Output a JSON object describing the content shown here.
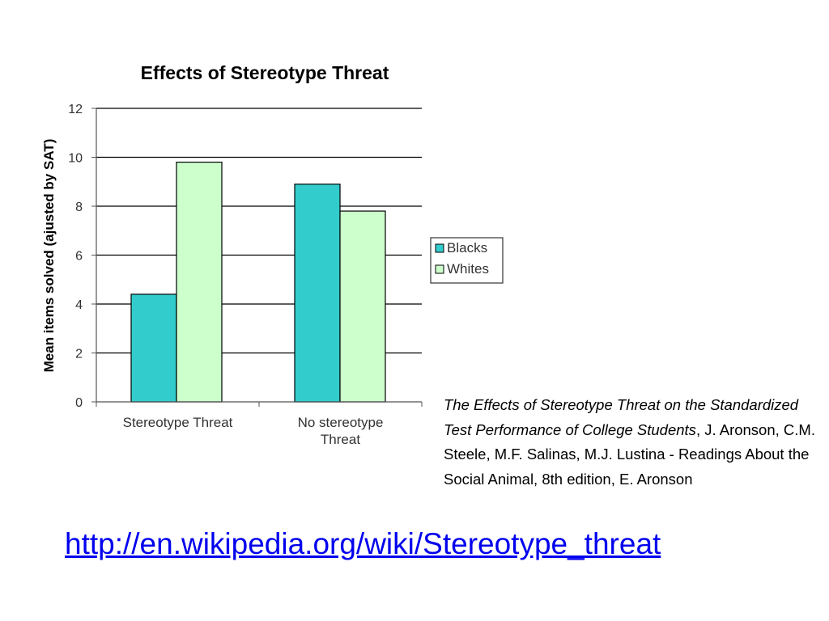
{
  "chart_data": {
    "type": "bar",
    "title": "Effects of Stereotype Threat",
    "xlabel": "",
    "ylabel": "Mean items solved (ajusted by SAT)",
    "ylim": [
      0,
      12
    ],
    "yticks": [
      "0",
      "2",
      "4",
      "6",
      "8",
      "10",
      "12"
    ],
    "categories": [
      "Stereotype Threat",
      "No stereotype Threat"
    ],
    "series": [
      {
        "name": "Blacks",
        "values": [
          4.4,
          8.9
        ],
        "color": "#33cccc"
      },
      {
        "name": "Whites",
        "values": [
          9.8,
          7.8
        ],
        "color": "#ccffcc"
      }
    ],
    "grid": true,
    "legend_position": "right"
  },
  "citation": {
    "title_italic": "The Effects of Stereotype Threat on the Standardized Test Performance of College Students",
    "rest": ", J. Aronson, C.M. Steele, M.F. Salinas, M.J. Lustina - Readings About the Social Animal, 8th edition, E. Aronson"
  },
  "link": {
    "text": "http://en.wikipedia.org/wiki/Stereotype_threat"
  },
  "colors": {
    "link": "#0000ee",
    "bar_outline": "#000000",
    "gridline": "#000000"
  }
}
